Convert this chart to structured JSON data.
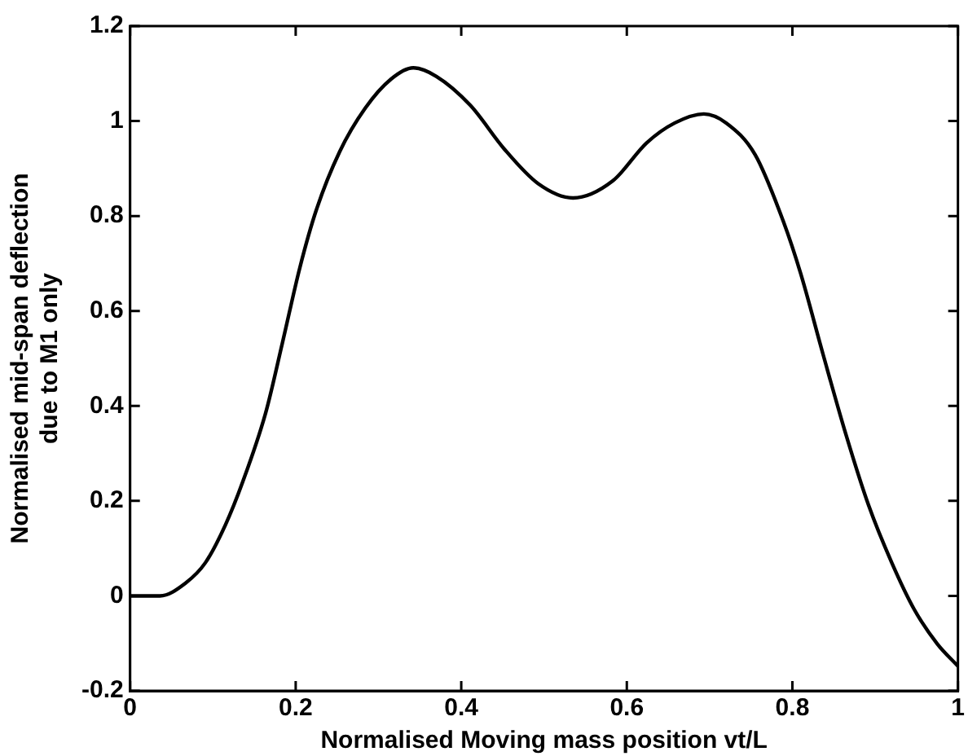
{
  "chart_data": {
    "type": "line",
    "xlabel": "Normalised Moving mass position vt/L",
    "ylabel": "Normalised mid-span deflection\ndue to M1 only",
    "x": [
      0,
      0.036,
      0.067,
      0.091,
      0.115,
      0.136,
      0.164,
      0.184,
      0.205,
      0.225,
      0.253,
      0.284,
      0.315,
      0.342,
      0.37,
      0.411,
      0.452,
      0.493,
      0.535,
      0.583,
      0.624,
      0.658,
      0.693,
      0.72,
      0.755,
      0.789,
      0.81,
      0.837,
      0.865,
      0.892,
      0.92,
      0.947,
      0.975,
      1.0
    ],
    "series": [
      {
        "color": "#000000",
        "values": [
          0,
          0,
          0.027,
          0.07,
          0.149,
          0.24,
          0.387,
          0.533,
          0.691,
          0.813,
          0.935,
          1.027,
          1.088,
          1.112,
          1.094,
          1.033,
          0.941,
          0.868,
          0.838,
          0.874,
          0.954,
          0.996,
          1.015,
          0.996,
          0.929,
          0.789,
          0.679,
          0.509,
          0.338,
          0.191,
          0.07,
          -0.028,
          -0.101,
          -0.148
        ]
      }
    ],
    "xlim": [
      0,
      1
    ],
    "xticks": [
      0,
      0.2,
      0.4,
      0.6,
      0.8,
      1
    ],
    "ylim": [
      -0.2,
      1.2
    ],
    "yticks": [
      -0.2,
      0,
      0.2,
      0.4,
      0.6,
      0.8,
      1,
      1.2
    ],
    "grid": false,
    "legend": false,
    "marker": "none",
    "line_style": "solid"
  }
}
